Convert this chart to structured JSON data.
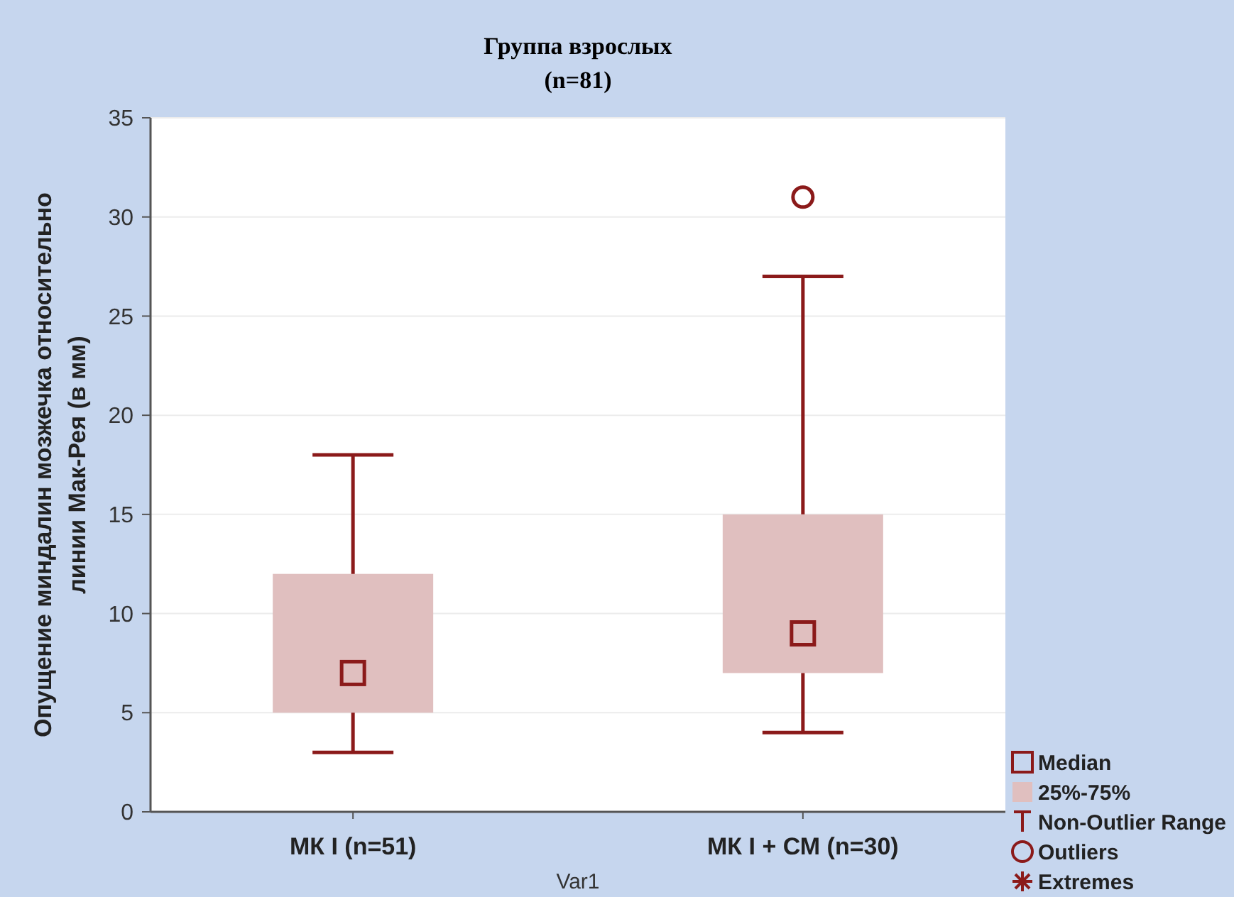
{
  "chart_data": {
    "type": "box",
    "title": "Группа взрослых",
    "subtitle": "(n=81)",
    "xlabel": "Var1",
    "ylabel": "Опущение миндалин мозжечка относительно линии Мак-Рея (в мм)",
    "categories": [
      "МК I (n=51)",
      "МК I + СМ (n=30)"
    ],
    "series": [
      {
        "color": "#e0bfbf",
        "boxes": [
          {
            "low": 3,
            "q1": 5,
            "median": 7,
            "q3": 12,
            "high": 18
          },
          {
            "low": 4,
            "q1": 7,
            "median": 9,
            "q3": 15,
            "high": 27,
            "outliers": [
              31
            ]
          }
        ]
      }
    ],
    "ylim": [
      0,
      35
    ],
    "yticks": [
      0,
      5,
      10,
      15,
      20,
      25,
      30,
      35
    ],
    "grid": "y",
    "annotations": [
      "Median",
      "25%-75%",
      "Non-Outlier Range",
      "Outliers",
      "Extremes"
    ]
  }
}
